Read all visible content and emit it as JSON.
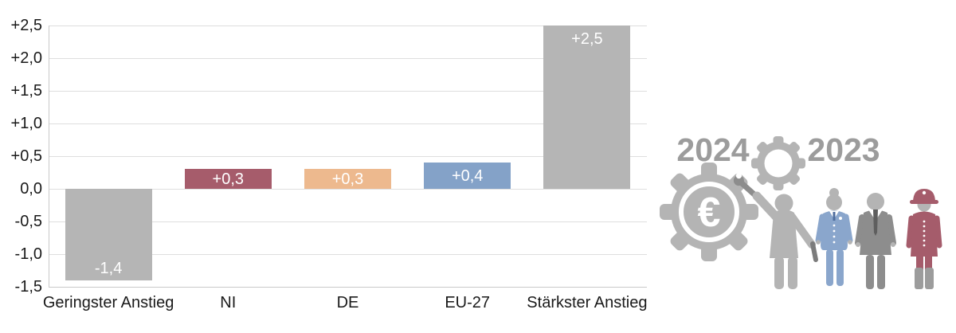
{
  "chart_data": {
    "type": "bar",
    "title": "",
    "xlabel": "",
    "ylabel": "",
    "categories": [
      "Geringster Anstieg",
      "NI",
      "DE",
      "EU-27",
      "Stärkster Anstieg"
    ],
    "values": [
      -1.4,
      0.3,
      0.3,
      0.4,
      2.5
    ],
    "bar_labels": [
      "-1,4",
      "+0,3",
      "+0,3",
      "+0,4",
      "+2,5"
    ],
    "bar_colors": [
      "#b5b5b5",
      "#a65c6b",
      "#edb98e",
      "#84a2c8",
      "#b5b5b5"
    ],
    "y_tick_labels": [
      "+2,5",
      "+2,0",
      "+1,5",
      "+1,0",
      "+0,5",
      "0,0",
      "-0,5",
      "-1,0",
      "-1,5"
    ],
    "y_tick_values": [
      2.5,
      2.0,
      1.5,
      1.0,
      0.5,
      0.0,
      -0.5,
      -1.0,
      -1.5
    ],
    "ylim": [
      -1.5,
      2.5
    ],
    "grid": true,
    "legend": false
  },
  "illustration": {
    "year_2024": "2024",
    "year_2023": "2023",
    "euro_symbol": "€",
    "colors": {
      "light_gray": "#b4b4b4",
      "dark_gray": "#8d8d8d",
      "year_text": "#9c9c9c",
      "wrench_gray": "#8d8d8d",
      "tool_dark": "#7c7c7c",
      "blue": "#8aa6cc",
      "tie_blue": "#4e6d9e",
      "red": "#a55c6b",
      "boot_gray": "#9c9c9c"
    }
  },
  "styles": {
    "background": "#ffffff",
    "grid_color": "#dedede",
    "axis_color": "#c9c9c9",
    "tick_text_color": "#1a1a1a",
    "bar_label_color": "#ffffff"
  }
}
